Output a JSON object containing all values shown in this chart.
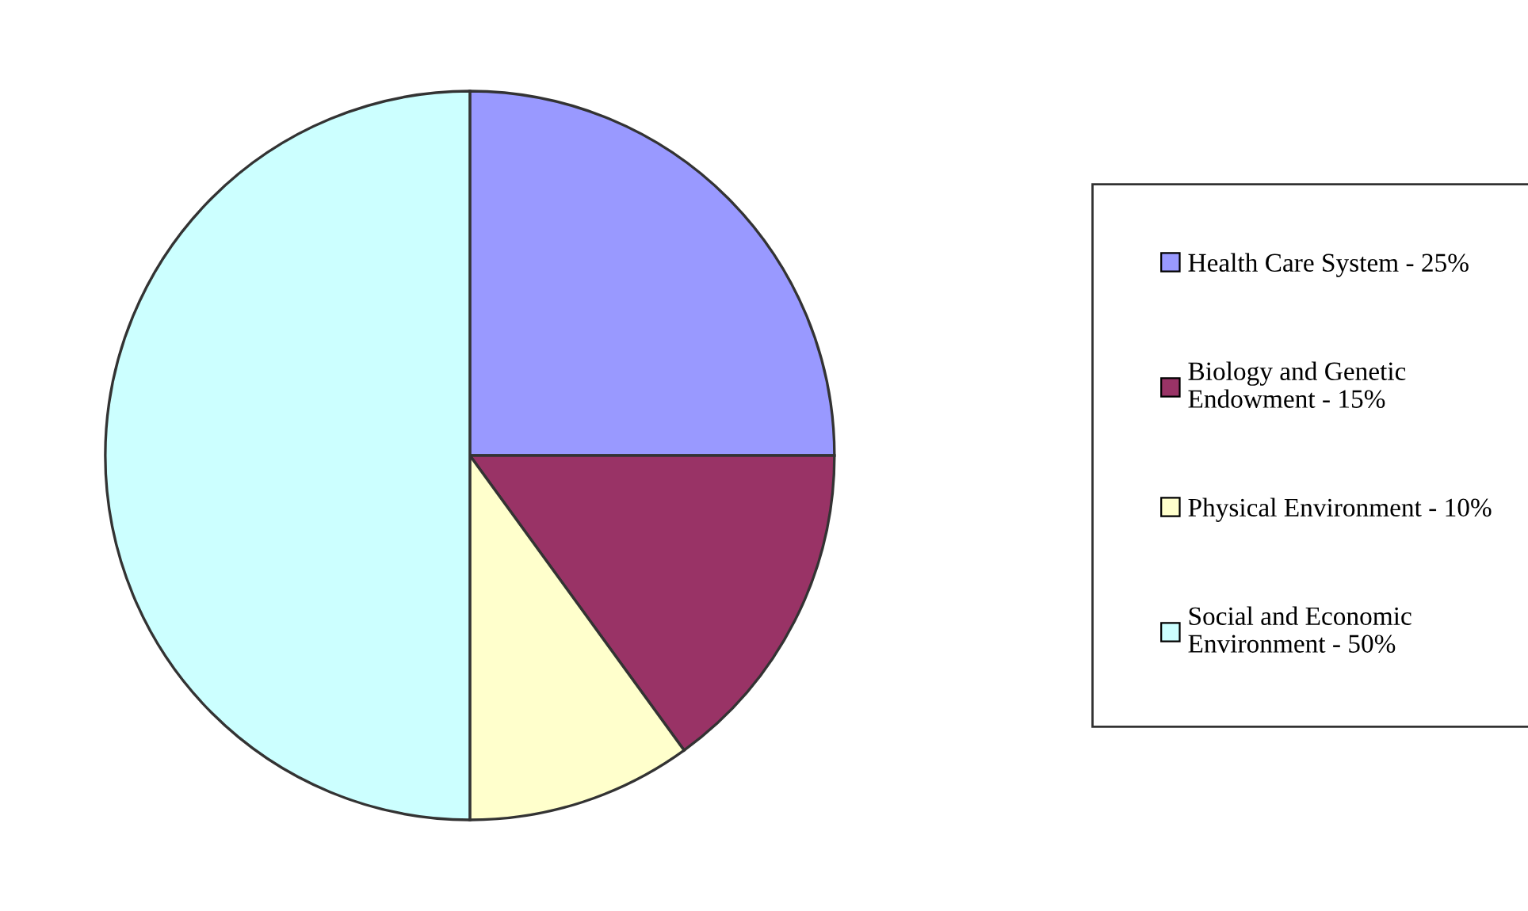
{
  "chart_data": {
    "type": "pie",
    "categories": [
      "Health Care System - 25%",
      "Biology and Genetic Endowment - 15%",
      "Physical Environment - 10%",
      "Social and Economic Environment - 50%"
    ],
    "values": [
      25,
      15,
      10,
      50
    ],
    "colors": [
      "#9999ff",
      "#993366",
      "#ffffcc",
      "#ccffff"
    ],
    "legend": "right"
  }
}
